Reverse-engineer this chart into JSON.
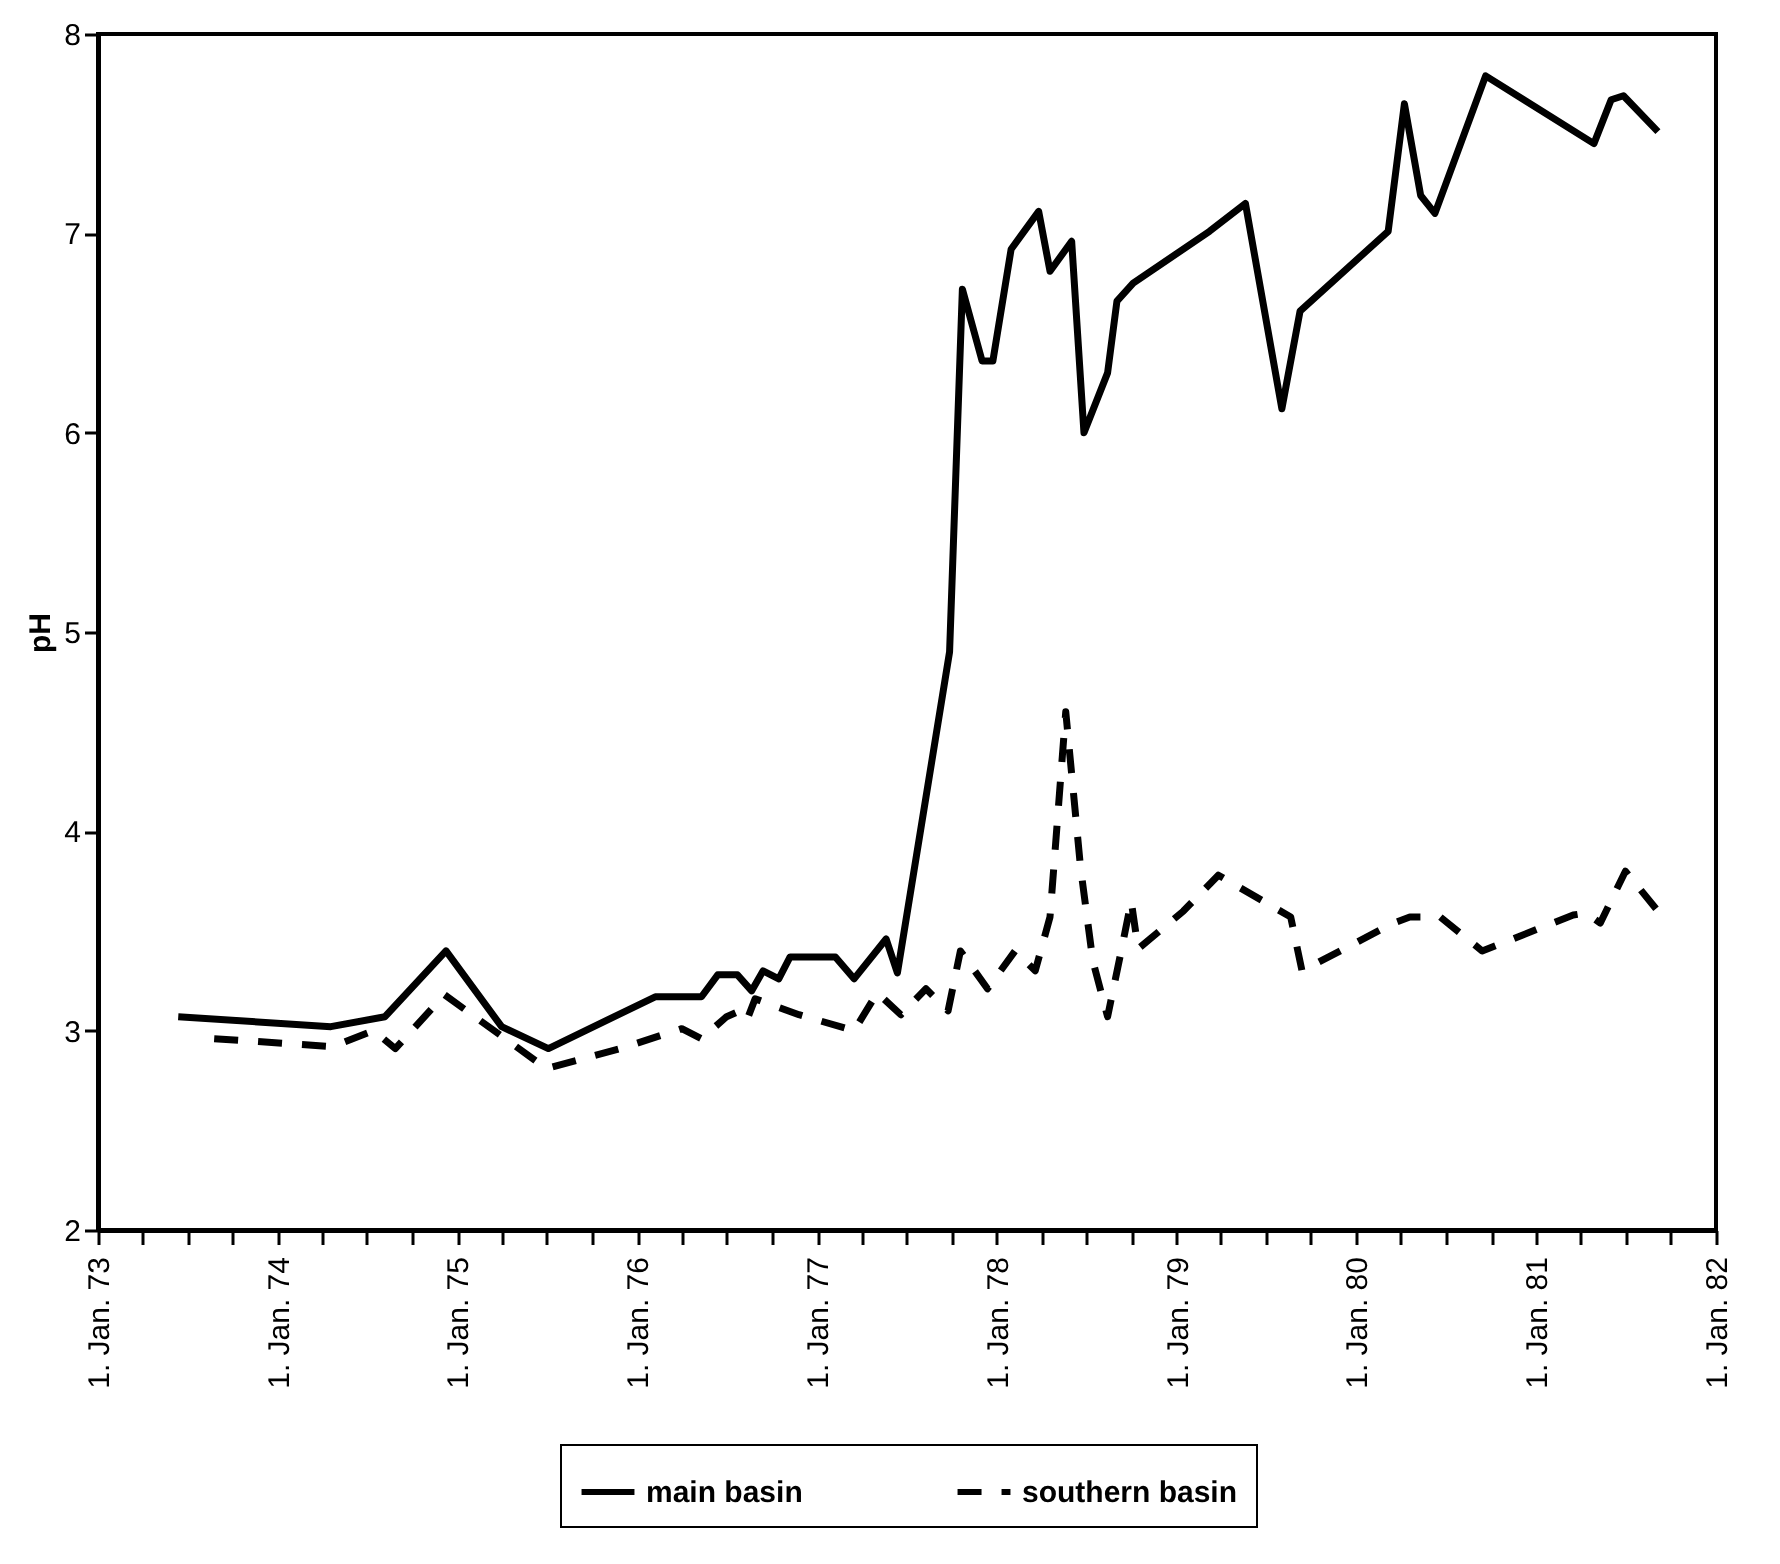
{
  "chart_data": {
    "type": "line",
    "ylabel": "pH",
    "xlim": [
      "1973-01-01",
      "1982-01-01"
    ],
    "ylim": [
      2,
      8
    ],
    "yticks": [
      2,
      3,
      4,
      5,
      6,
      7,
      8
    ],
    "xticks": [
      {
        "value": "1973-01-01",
        "label": "1. Jan. 73"
      },
      {
        "value": "1973-04-01",
        "label": null
      },
      {
        "value": "1973-07-01",
        "label": null
      },
      {
        "value": "1973-10-01",
        "label": null
      },
      {
        "value": "1974-01-01",
        "label": "1. Jan. 74"
      },
      {
        "value": "1974-04-01",
        "label": null
      },
      {
        "value": "1974-07-01",
        "label": null
      },
      {
        "value": "1974-10-01",
        "label": null
      },
      {
        "value": "1975-01-01",
        "label": "1. Jan. 75"
      },
      {
        "value": "1975-04-01",
        "label": null
      },
      {
        "value": "1975-07-01",
        "label": null
      },
      {
        "value": "1975-10-01",
        "label": null
      },
      {
        "value": "1976-01-01",
        "label": "1. Jan. 76"
      },
      {
        "value": "1976-04-01",
        "label": null
      },
      {
        "value": "1976-07-01",
        "label": null
      },
      {
        "value": "1976-10-01",
        "label": null
      },
      {
        "value": "1977-01-01",
        "label": "1. Jan. 77"
      },
      {
        "value": "1977-04-01",
        "label": null
      },
      {
        "value": "1977-07-01",
        "label": null
      },
      {
        "value": "1977-10-01",
        "label": null
      },
      {
        "value": "1978-01-01",
        "label": "1. Jan. 78"
      },
      {
        "value": "1978-04-01",
        "label": null
      },
      {
        "value": "1978-07-01",
        "label": null
      },
      {
        "value": "1978-10-01",
        "label": null
      },
      {
        "value": "1979-01-01",
        "label": "1. Jan. 79"
      },
      {
        "value": "1979-04-01",
        "label": null
      },
      {
        "value": "1979-07-01",
        "label": null
      },
      {
        "value": "1979-10-01",
        "label": null
      },
      {
        "value": "1980-01-01",
        "label": "1. Jan. 80"
      },
      {
        "value": "1980-04-01",
        "label": null
      },
      {
        "value": "1980-07-01",
        "label": null
      },
      {
        "value": "1980-10-01",
        "label": null
      },
      {
        "value": "1981-01-01",
        "label": "1. Jan. 81"
      },
      {
        "value": "1981-04-01",
        "label": null
      },
      {
        "value": "1981-07-01",
        "label": null
      },
      {
        "value": "1981-10-01",
        "label": null
      },
      {
        "value": "1982-01-01",
        "label": "1. Jan. 82"
      }
    ],
    "legend": "bottom",
    "grid": false,
    "series": [
      {
        "name": "main basin",
        "color": "#000000",
        "line_style": "solid",
        "x": [
          "1973-06-13",
          "1974-04-19",
          "1974-08-07",
          "1974-12-09",
          "1975-04-01",
          "1975-07-05",
          "1976-02-07",
          "1976-05-11",
          "1976-06-13",
          "1976-07-23",
          "1976-08-21",
          "1976-09-13",
          "1976-10-15",
          "1976-11-07",
          "1977-02-07",
          "1977-03-17",
          "1977-05-21",
          "1977-06-13",
          "1977-09-27",
          "1977-10-23",
          "1977-12-02",
          "1977-12-24",
          "1978-01-30",
          "1978-03-27",
          "1978-04-19",
          "1978-06-02",
          "1978-06-27",
          "1978-08-14",
          "1978-09-02",
          "1978-10-05",
          "1979-03-09",
          "1979-05-21",
          "1979-08-03",
          "1979-09-09",
          "1980-03-06",
          "1980-04-08",
          "1980-05-11",
          "1980-06-09",
          "1980-09-20",
          "1981-04-28",
          "1981-06-02",
          "1981-06-27",
          "1981-09-05"
        ],
        "values": [
          3.07,
          3.02,
          3.07,
          3.4,
          3.02,
          2.91,
          3.17,
          3.17,
          3.28,
          3.28,
          3.2,
          3.3,
          3.26,
          3.37,
          3.37,
          3.26,
          3.46,
          3.29,
          4.9,
          6.72,
          6.36,
          6.36,
          6.92,
          7.11,
          6.81,
          6.96,
          6.0,
          6.3,
          6.66,
          6.75,
          7.01,
          7.15,
          6.12,
          6.61,
          7.01,
          7.65,
          7.19,
          7.1,
          7.79,
          7.45,
          7.67,
          7.69,
          7.51
        ]
      },
      {
        "name": "southern basin",
        "color": "#000000",
        "line_style": "dashed",
        "x": [
          "1973-08-25",
          "1974-04-22",
          "1974-07-15",
          "1974-08-28",
          "1974-12-06",
          "1975-07-01",
          "1975-11-28",
          "1976-04-01",
          "1976-05-11",
          "1976-07-01",
          "1976-08-07",
          "1976-08-14",
          "1976-08-28",
          "1976-11-25",
          "1977-03-17",
          "1977-05-03",
          "1977-06-20",
          "1977-08-10",
          "1977-09-24",
          "1977-10-19",
          "1977-12-13",
          "1978-02-07",
          "1978-03-20",
          "1978-04-19",
          "1978-05-21",
          "1978-06-20",
          "1978-07-15",
          "1978-08-14",
          "1978-09-09",
          "1978-10-01",
          "1978-10-15",
          "1979-01-15",
          "1979-03-27",
          "1979-08-21",
          "1979-09-13",
          "1980-03-17",
          "1980-04-19",
          "1980-06-20",
          "1980-09-13",
          "1981-03-17",
          "1981-04-12",
          "1981-05-11",
          "1981-07-01",
          "1981-09-05"
        ],
        "values": [
          2.96,
          2.92,
          3.0,
          2.91,
          3.18,
          2.81,
          2.91,
          3.01,
          2.96,
          3.07,
          3.11,
          3.07,
          3.16,
          3.08,
          3.0,
          3.19,
          3.08,
          3.21,
          3.1,
          3.4,
          3.21,
          3.4,
          3.3,
          3.57,
          4.6,
          3.82,
          3.35,
          3.07,
          3.38,
          3.65,
          3.41,
          3.6,
          3.78,
          3.57,
          3.3,
          3.54,
          3.57,
          3.57,
          3.4,
          3.58,
          3.59,
          3.54,
          3.8,
          3.6
        ]
      }
    ]
  }
}
